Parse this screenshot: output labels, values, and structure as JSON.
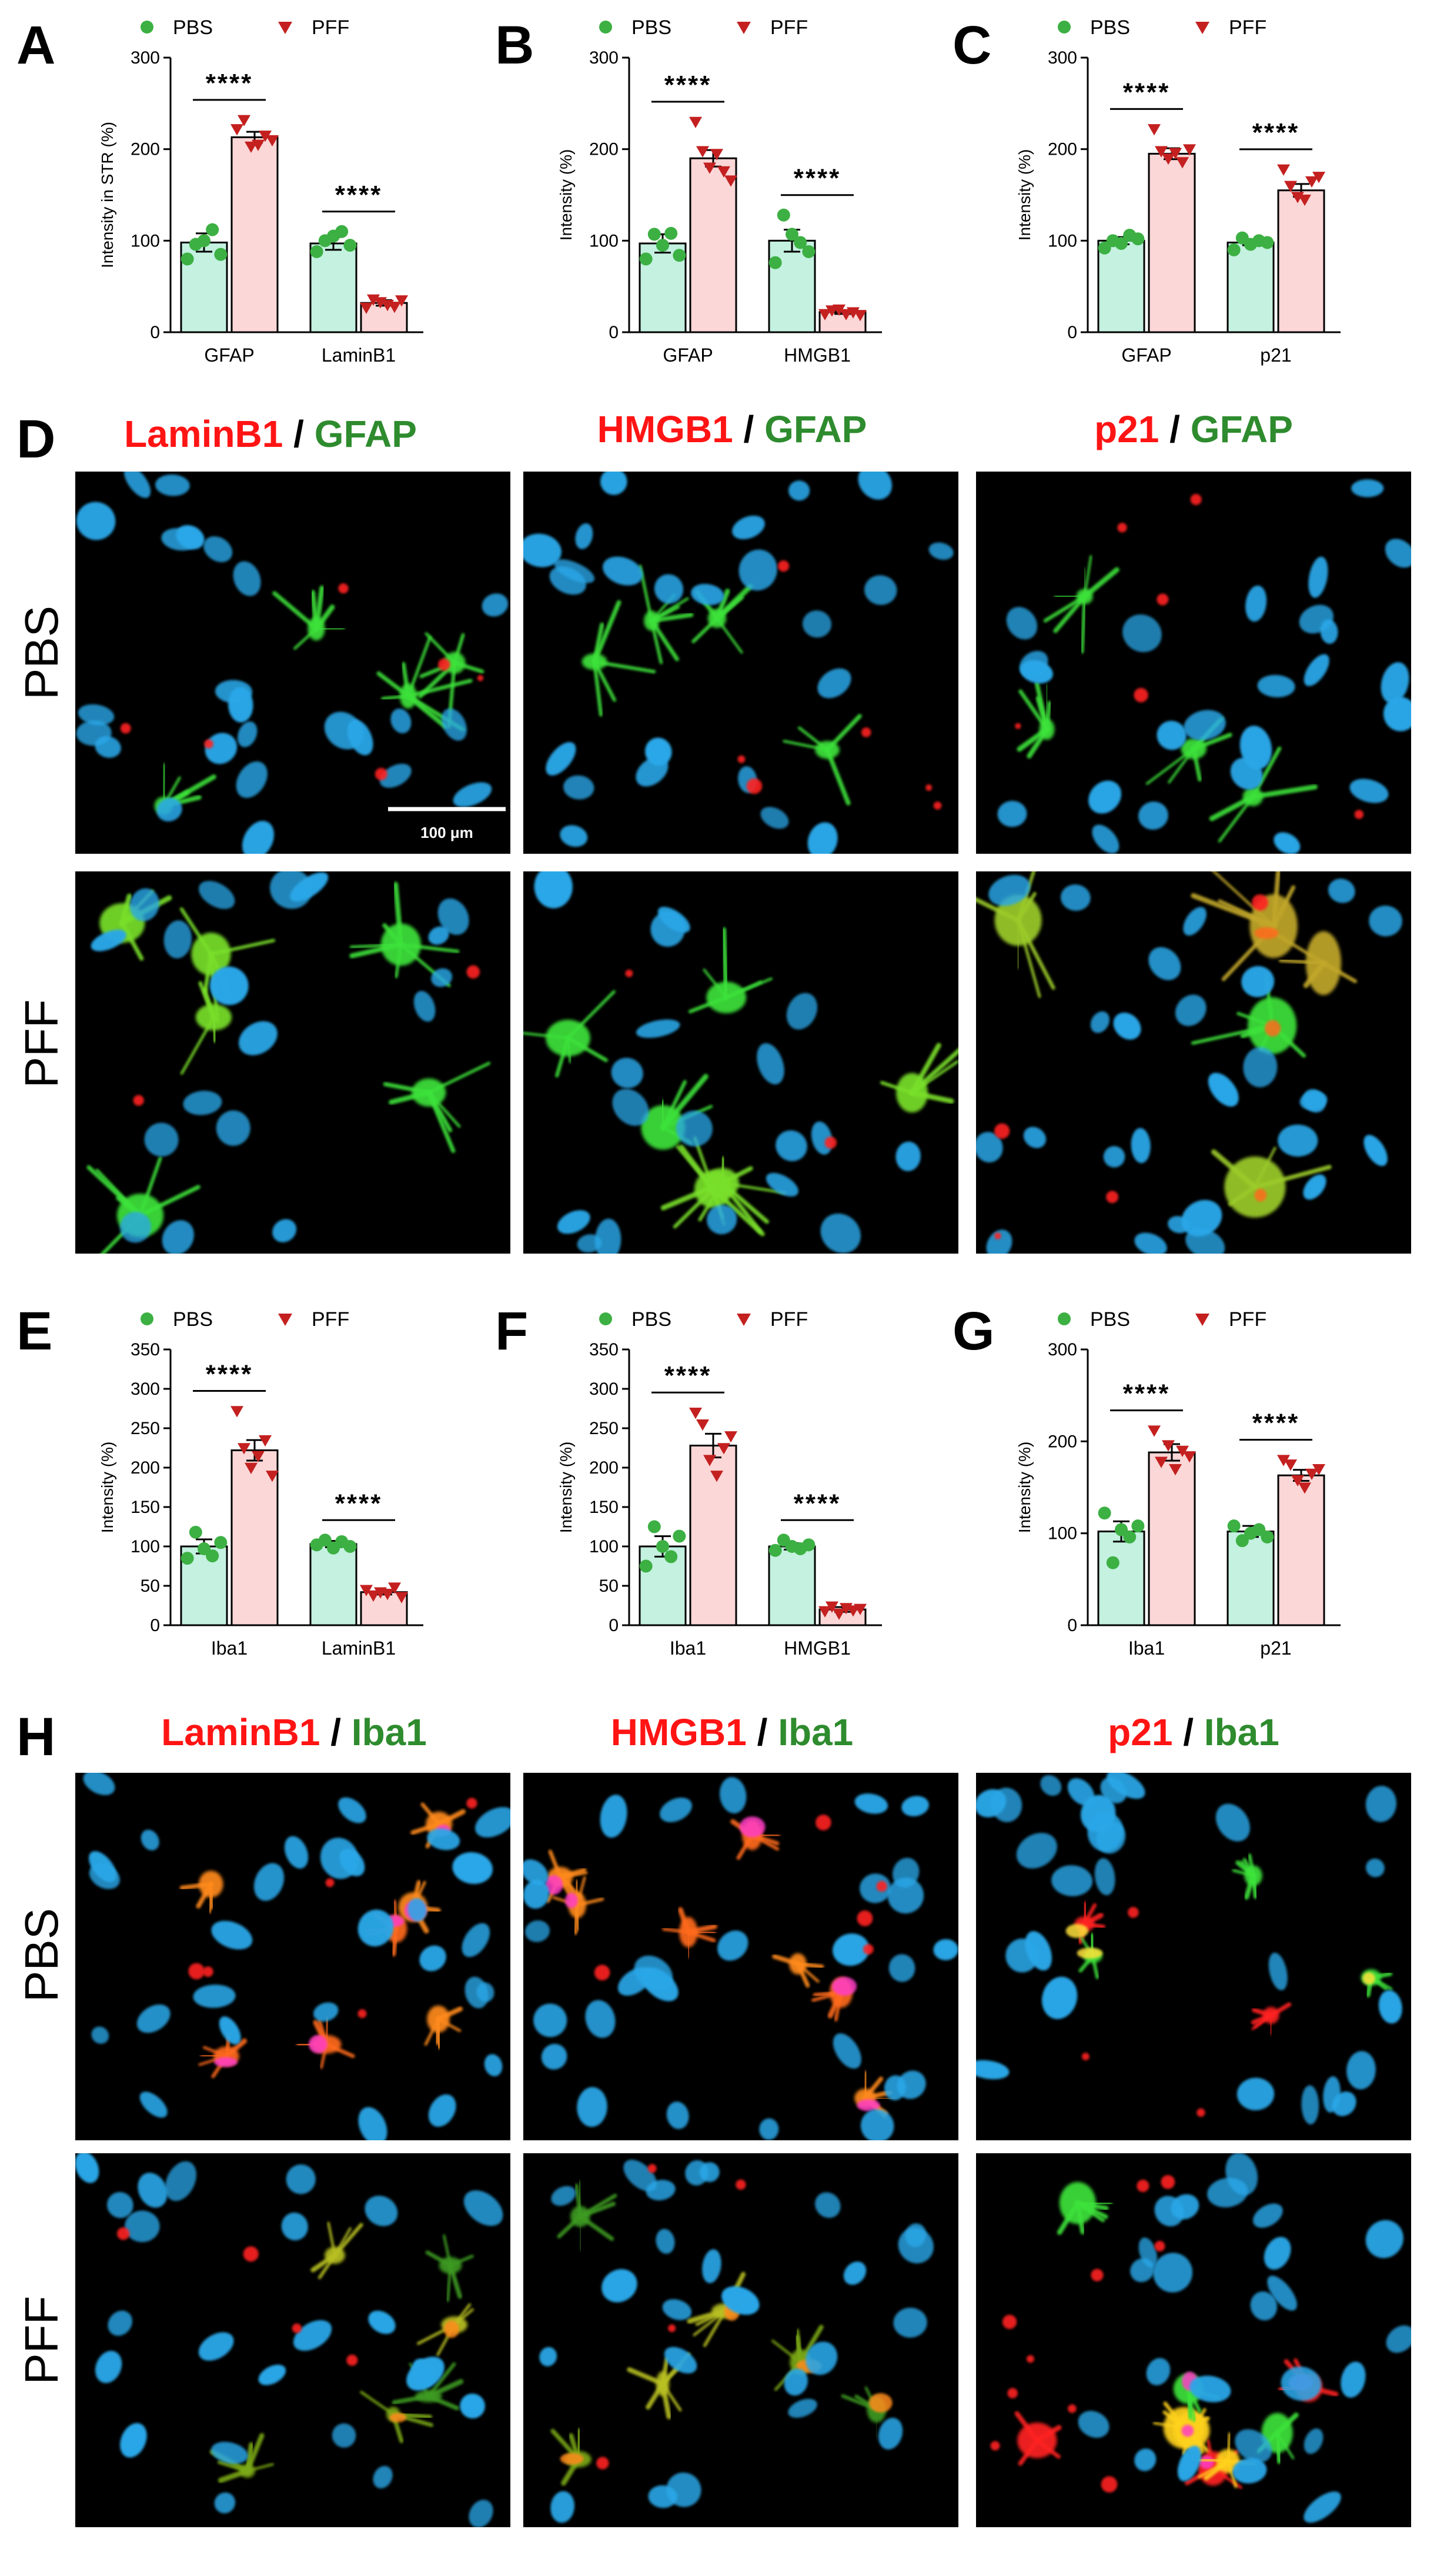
{
  "panel_letters": [
    "A",
    "B",
    "C",
    "D",
    "E",
    "F",
    "G",
    "H"
  ],
  "colors": {
    "pbs_fill": "#c4f1e0",
    "pff_fill": "#fbd7d7",
    "pbs_dot": "#3cb043",
    "pff_dot": "#c42020",
    "red_text": "#ff1414",
    "green_text": "#2e8b2e",
    "nucleus": "#2aa7e8",
    "gfap": "#3ee23a",
    "marker": "#ff2020",
    "iba1_merge": "#ff8a1e"
  },
  "legend": {
    "pbs": "PBS",
    "pff": "PFF"
  },
  "significance": "****",
  "scale_bar_label": "100 μm",
  "image_grids": [
    {
      "letter": "D",
      "rows": [
        "PBS",
        "PFF"
      ],
      "columns": [
        {
          "red": "LaminB1",
          "sep": " / ",
          "green": "GFAP"
        },
        {
          "red": "HMGB1",
          "sep": " / ",
          "green": "GFAP"
        },
        {
          "red": "p21",
          "sep": " / ",
          "green": "GFAP"
        }
      ]
    },
    {
      "letter": "H",
      "rows": [
        "PBS",
        "PFF"
      ],
      "columns": [
        {
          "red": "LaminB1",
          "sep": " / ",
          "green": "Iba1"
        },
        {
          "red": "HMGB1",
          "sep": " / ",
          "green": "Iba1"
        },
        {
          "red": "p21",
          "sep": " / ",
          "green": "Iba1"
        }
      ]
    }
  ],
  "chart_data": [
    {
      "panel": "A",
      "type": "bar",
      "ylabel": "Intensity in STR (%)",
      "ylim": [
        0,
        300
      ],
      "yticks": [
        0,
        100,
        200,
        300
      ],
      "categories": [
        "GFAP",
        "LaminB1"
      ],
      "series": [
        {
          "name": "PBS",
          "values": [
            98,
            97
          ],
          "errors": [
            10,
            7
          ],
          "points": [
            [
              80,
              96,
              100,
              112,
              85
            ],
            [
              88,
              100,
              105,
              110,
              95
            ]
          ]
        },
        {
          "name": "PFF",
          "values": [
            213,
            32
          ],
          "errors": [
            6,
            3
          ],
          "points": [
            [
              222,
              232,
              203,
              205,
              215,
              210
            ],
            [
              27,
              36,
              33,
              30,
              28,
              35
            ]
          ]
        }
      ],
      "significance": [
        "****",
        "****"
      ]
    },
    {
      "panel": "B",
      "type": "bar",
      "ylabel": "Intensity (%)",
      "ylim": [
        0,
        300
      ],
      "yticks": [
        0,
        100,
        200,
        300
      ],
      "categories": [
        "GFAP",
        "HMGB1"
      ],
      "series": [
        {
          "name": "PBS",
          "values": [
            97,
            100
          ],
          "errors": [
            10,
            12
          ],
          "points": [
            [
              80,
              107,
              95,
              108,
              84
            ],
            [
              76,
              128,
              107,
              98,
              88
            ]
          ]
        },
        {
          "name": "PFF",
          "values": [
            190,
            22
          ],
          "errors": [
            9,
            2
          ],
          "points": [
            [
              230,
              198,
              180,
              195,
              176,
              166
            ],
            [
              20,
              24,
              25,
              20,
              22,
              19
            ]
          ]
        }
      ],
      "significance": [
        "****",
        "****"
      ]
    },
    {
      "panel": "C",
      "type": "bar",
      "ylabel": "Intensity (%)",
      "ylim": [
        0,
        300
      ],
      "yticks": [
        0,
        100,
        200,
        300
      ],
      "categories": [
        "GFAP",
        "p21"
      ],
      "series": [
        {
          "name": "PBS",
          "values": [
            100,
            98
          ],
          "errors": [
            4,
            3
          ],
          "points": [
            [
              92,
              100,
              97,
              106,
              102
            ],
            [
              90,
              103,
              96,
              100,
              98
            ]
          ]
        },
        {
          "name": "PFF",
          "values": [
            195,
            155
          ],
          "errors": [
            6,
            7
          ],
          "points": [
            [
              222,
              198,
              190,
              196,
              186,
              200
            ],
            [
              178,
              160,
              148,
              145,
              165,
              170
            ]
          ]
        }
      ],
      "significance": [
        "****",
        "****"
      ]
    },
    {
      "panel": "E",
      "type": "bar",
      "ylabel": "Intensity (%)",
      "ylim": [
        0,
        350
      ],
      "yticks": [
        0,
        50,
        100,
        150,
        200,
        250,
        300,
        350
      ],
      "categories": [
        "Iba1",
        "LaminB1"
      ],
      "series": [
        {
          "name": "PBS",
          "values": [
            100,
            103
          ],
          "errors": [
            9,
            4
          ],
          "points": [
            [
              85,
              118,
              97,
              88,
              105
            ],
            [
              102,
              108,
              98,
              106,
              100
            ]
          ]
        },
        {
          "name": "PFF",
          "values": [
            222,
            42
          ],
          "errors": [
            13,
            3
          ],
          "points": [
            [
              272,
              225,
              200,
              215,
              235,
              190
            ],
            [
              45,
              38,
              42,
              40,
              48,
              36
            ]
          ]
        }
      ],
      "significance": [
        "****",
        "****"
      ]
    },
    {
      "panel": "F",
      "type": "bar",
      "ylabel": "Intensity (%)",
      "ylim": [
        0,
        350
      ],
      "yticks": [
        0,
        50,
        100,
        150,
        200,
        250,
        300,
        350
      ],
      "categories": [
        "Iba1",
        "HMGB1"
      ],
      "series": [
        {
          "name": "PBS",
          "values": [
            100,
            100
          ],
          "errors": [
            13,
            4
          ],
          "points": [
            [
              75,
              125,
              100,
              87,
              113
            ],
            [
              95,
              108,
              100,
              97,
              102
            ]
          ]
        },
        {
          "name": "PFF",
          "values": [
            228,
            20
          ],
          "errors": [
            15,
            3
          ],
          "points": [
            [
              270,
              255,
              210,
              190,
              225,
              240
            ],
            [
              18,
              24,
              15,
              22,
              19,
              21
            ]
          ]
        }
      ],
      "significance": [
        "****",
        "****"
      ]
    },
    {
      "panel": "G",
      "type": "bar",
      "ylabel": "Intensity (%)",
      "ylim": [
        0,
        300
      ],
      "yticks": [
        0,
        100,
        200,
        300
      ],
      "categories": [
        "Iba1",
        "p21"
      ],
      "series": [
        {
          "name": "PBS",
          "values": [
            102,
            102
          ],
          "errors": [
            11,
            6
          ],
          "points": [
            [
              122,
              68,
              104,
              96,
              108
            ],
            [
              108,
              92,
              100,
              104,
              96
            ]
          ]
        },
        {
          "name": "PFF",
          "values": [
            188,
            163
          ],
          "errors": [
            9,
            6
          ],
          "points": [
            [
              212,
              178,
              196,
              170,
              190,
              184
            ],
            [
              180,
              175,
              158,
              150,
              165,
              170
            ]
          ]
        }
      ],
      "significance": [
        "****",
        "****"
      ]
    }
  ]
}
